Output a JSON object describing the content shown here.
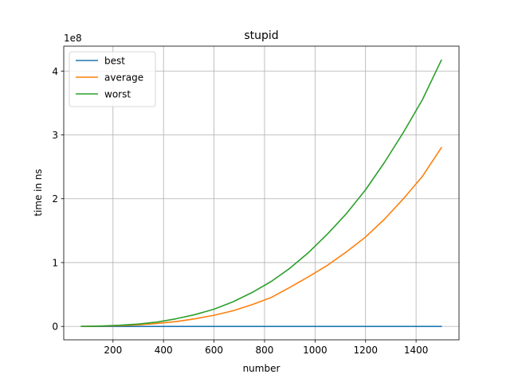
{
  "chart_data": {
    "type": "line",
    "title": "stupid",
    "xlabel": "number",
    "ylabel": "time in ns",
    "y_offset_label": "1e8",
    "y_scale_factor": 100000000,
    "xlim": [
      5,
      1570
    ],
    "ylim": [
      -0.21,
      4.39
    ],
    "xticks": [
      200,
      400,
      600,
      800,
      1000,
      1200,
      1400
    ],
    "yticks": [
      0,
      1,
      2,
      3,
      4
    ],
    "grid": true,
    "legend_position": "upper-left",
    "x": [
      75,
      150,
      225,
      300,
      375,
      450,
      525,
      600,
      675,
      750,
      825,
      900,
      975,
      1050,
      1125,
      1200,
      1275,
      1350,
      1425,
      1500
    ],
    "series": [
      {
        "name": "best",
        "color": "#1f77b4",
        "values": [
          0,
          0,
          0,
          0,
          0,
          0,
          0,
          0,
          0,
          0,
          0,
          0,
          0,
          0,
          0,
          0,
          0,
          0,
          0,
          0
        ]
      },
      {
        "name": "average",
        "color": "#ff7f0e",
        "values": [
          0.0,
          0.004,
          0.012,
          0.025,
          0.046,
          0.076,
          0.12,
          0.175,
          0.245,
          0.34,
          0.45,
          0.61,
          0.78,
          0.96,
          1.17,
          1.4,
          1.68,
          2.0,
          2.35,
          2.8
        ]
      },
      {
        "name": "worst",
        "color": "#2ca02c",
        "values": [
          0.0,
          0.006,
          0.018,
          0.037,
          0.068,
          0.12,
          0.185,
          0.27,
          0.385,
          0.53,
          0.7,
          0.91,
          1.16,
          1.45,
          1.77,
          2.14,
          2.57,
          3.04,
          3.55,
          4.17
        ]
      }
    ]
  }
}
